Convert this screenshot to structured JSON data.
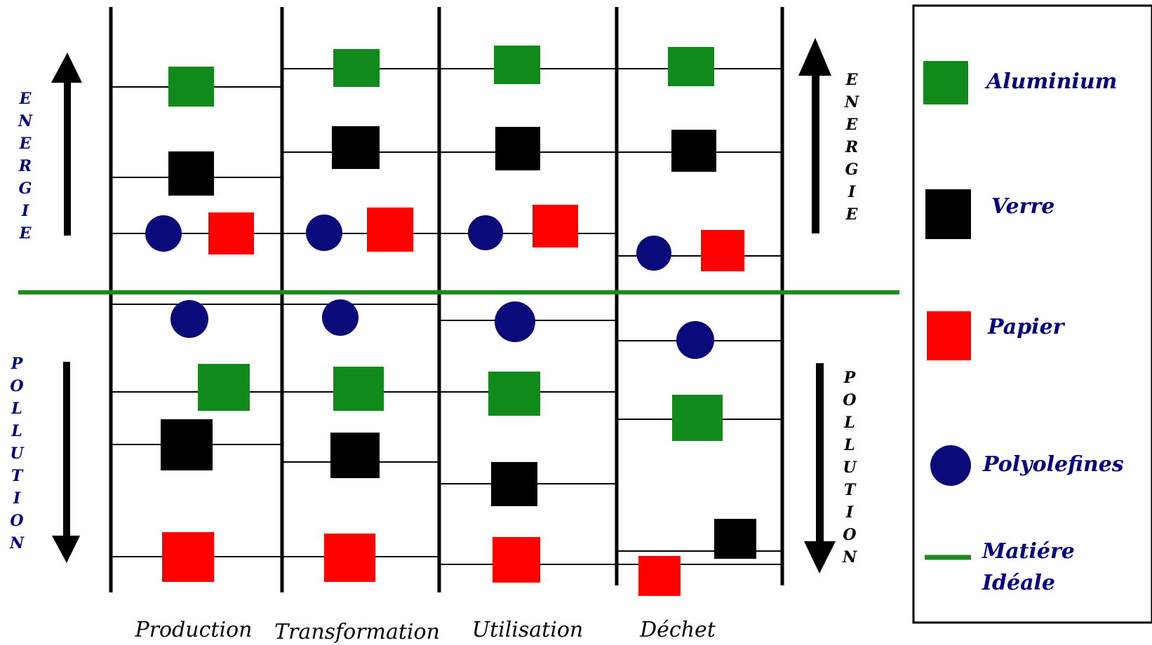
{
  "stages": [
    "Production",
    "Transformation",
    "Utilisation",
    "Déchet"
  ],
  "axis_labels": {
    "energie": [
      "E",
      "N",
      "E",
      "R",
      "G",
      "I",
      "E"
    ],
    "pollution": [
      "P",
      "O",
      "L",
      "L",
      "U",
      "T",
      "I",
      "O",
      "N"
    ]
  },
  "legend": {
    "aluminium": "Aluminium",
    "verre": "Verre",
    "papier": "Papier",
    "polyolefines": "Polyolefines",
    "ideal_line1": "Matiére",
    "ideal_line2": "Idéale"
  },
  "colors": {
    "aluminium": "#0f8a1b",
    "verre": "#000000",
    "papier": "#ff0000",
    "polyolefines": "#0a0a7a",
    "ideal": "#1c8a1c",
    "text": "#000080"
  }
}
